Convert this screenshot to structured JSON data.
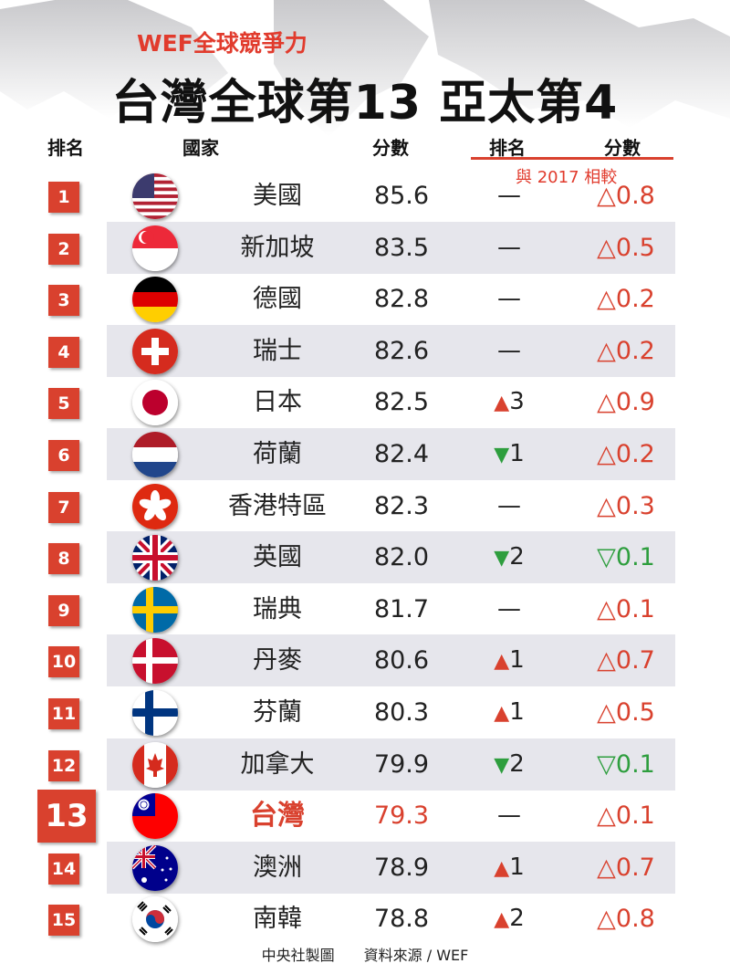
{
  "header": {
    "subtitle": "WEF全球競爭力",
    "title": "台灣全球第13 亞太第4"
  },
  "columns": {
    "rank": "排名",
    "country": "國家",
    "score": "分數",
    "rank_change": "排名",
    "score_change": "分數",
    "compare_note": "與 2017 相較"
  },
  "rows": [
    {
      "rank": "1",
      "country": "美國",
      "score": "85.6",
      "rank_change": "—",
      "score_change": "△0.8",
      "flag_icon": "usa-flag-icon"
    },
    {
      "rank": "2",
      "country": "新加坡",
      "score": "83.5",
      "rank_change": "—",
      "score_change": "△0.5",
      "flag_icon": "singapore-flag-icon"
    },
    {
      "rank": "3",
      "country": "德國",
      "score": "82.8",
      "rank_change": "—",
      "score_change": "△0.2",
      "flag_icon": "germany-flag-icon"
    },
    {
      "rank": "4",
      "country": "瑞士",
      "score": "82.6",
      "rank_change": "—",
      "score_change": "△0.2",
      "flag_icon": "switzerland-flag-icon"
    },
    {
      "rank": "5",
      "country": "日本",
      "score": "82.5",
      "rank_change": "▲3",
      "score_change": "△0.9",
      "flag_icon": "japan-flag-icon"
    },
    {
      "rank": "6",
      "country": "荷蘭",
      "score": "82.4",
      "rank_change": "▼1",
      "score_change": "△0.2",
      "flag_icon": "netherlands-flag-icon"
    },
    {
      "rank": "7",
      "country": "香港特區",
      "score": "82.3",
      "rank_change": "—",
      "score_change": "△0.3",
      "flag_icon": "hongkong-flag-icon"
    },
    {
      "rank": "8",
      "country": "英國",
      "score": "82.0",
      "rank_change": "▼2",
      "score_change": "▽0.1",
      "flag_icon": "uk-flag-icon"
    },
    {
      "rank": "9",
      "country": "瑞典",
      "score": "81.7",
      "rank_change": "—",
      "score_change": "△0.1",
      "flag_icon": "sweden-flag-icon"
    },
    {
      "rank": "10",
      "country": "丹麥",
      "score": "80.6",
      "rank_change": "▲1",
      "score_change": "△0.7",
      "flag_icon": "denmark-flag-icon"
    },
    {
      "rank": "11",
      "country": "芬蘭",
      "score": "80.3",
      "rank_change": "▲1",
      "score_change": "△0.5",
      "flag_icon": "finland-flag-icon"
    },
    {
      "rank": "12",
      "country": "加拿大",
      "score": "79.9",
      "rank_change": "▼2",
      "score_change": "▽0.1",
      "flag_icon": "canada-flag-icon"
    },
    {
      "rank": "13",
      "country": "台灣",
      "score": "79.3",
      "rank_change": "—",
      "score_change": "△0.1",
      "flag_icon": "taiwan-flag-icon"
    },
    {
      "rank": "14",
      "country": "澳洲",
      "score": "78.9",
      "rank_change": "▲1",
      "score_change": "△0.7",
      "flag_icon": "australia-flag-icon"
    },
    {
      "rank": "15",
      "country": "南韓",
      "score": "78.8",
      "rank_change": "▲2",
      "score_change": "△0.8",
      "flag_icon": "southkorea-flag-icon"
    }
  ],
  "footer": {
    "credit": "中央社製圖　　資料來源 / WEF"
  },
  "colors": {
    "accent_red": "#d9412e",
    "down_green": "#2e9e3e",
    "stripe_gray": "#e6e6ec"
  }
}
